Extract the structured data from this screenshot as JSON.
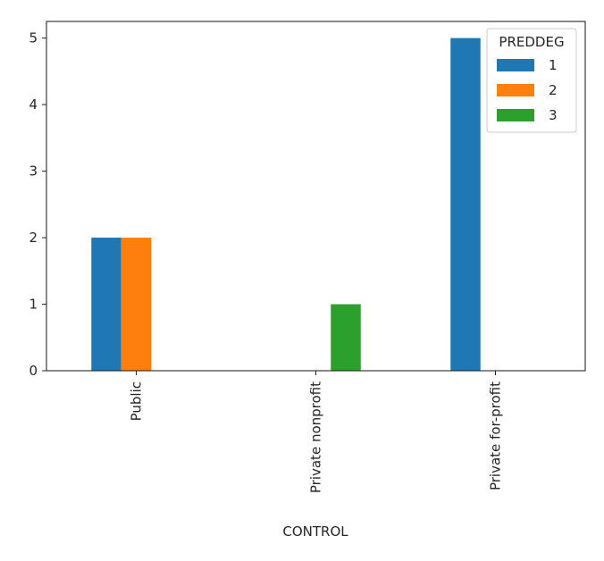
{
  "chart_data": {
    "type": "bar",
    "title": "",
    "xlabel": "CONTROL",
    "ylabel": "",
    "categories": [
      "Public",
      "Private nonprofit",
      "Private for-profit"
    ],
    "series": [
      {
        "name": "1",
        "values": [
          2,
          0,
          5
        ],
        "color": "#1f77b4"
      },
      {
        "name": "2",
        "values": [
          2,
          0,
          0
        ],
        "color": "#ff7f0e"
      },
      {
        "name": "3",
        "values": [
          0,
          1,
          0
        ],
        "color": "#2ca02c"
      }
    ],
    "ylim": [
      0,
      5.25
    ],
    "yticks": [
      "0",
      "1",
      "2",
      "3",
      "4",
      "5"
    ],
    "legend": {
      "title": "PREDDEG",
      "position": "top-right"
    },
    "grid": false
  }
}
